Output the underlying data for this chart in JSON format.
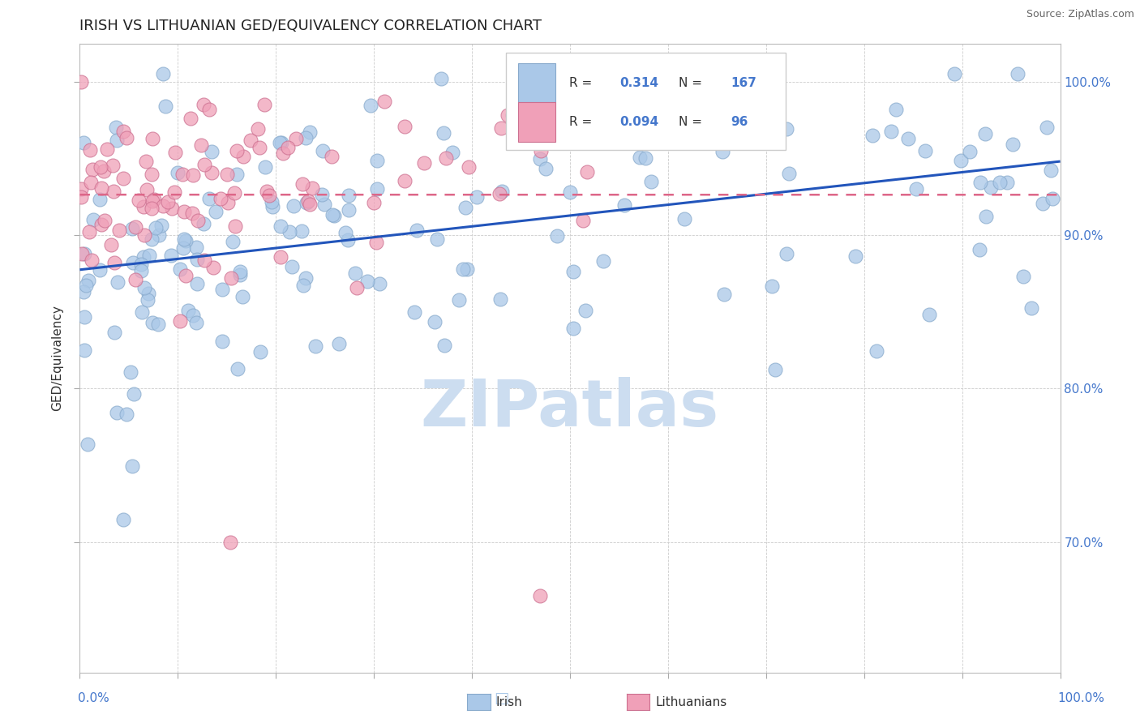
{
  "title": "IRISH VS LITHUANIAN GED/EQUIVALENCY CORRELATION CHART",
  "source": "Source: ZipAtlas.com",
  "ylabel": "GED/Equivalency",
  "irish_color": "#aac8e8",
  "irish_edge": "#88aacc",
  "lith_color": "#f0a0b8",
  "lith_edge": "#cc7090",
  "irish_R": 0.314,
  "irish_N": 167,
  "lith_R": 0.094,
  "lith_N": 96,
  "trend_irish_color": "#2255bb",
  "trend_lith_color": "#dd6688",
  "watermark_color": "#ccddf0",
  "right_yticks": [
    0.7,
    0.8,
    0.9,
    1.0
  ],
  "right_yticklabels": [
    "70.0%",
    "80.0%",
    "90.0%",
    "100.0%"
  ]
}
